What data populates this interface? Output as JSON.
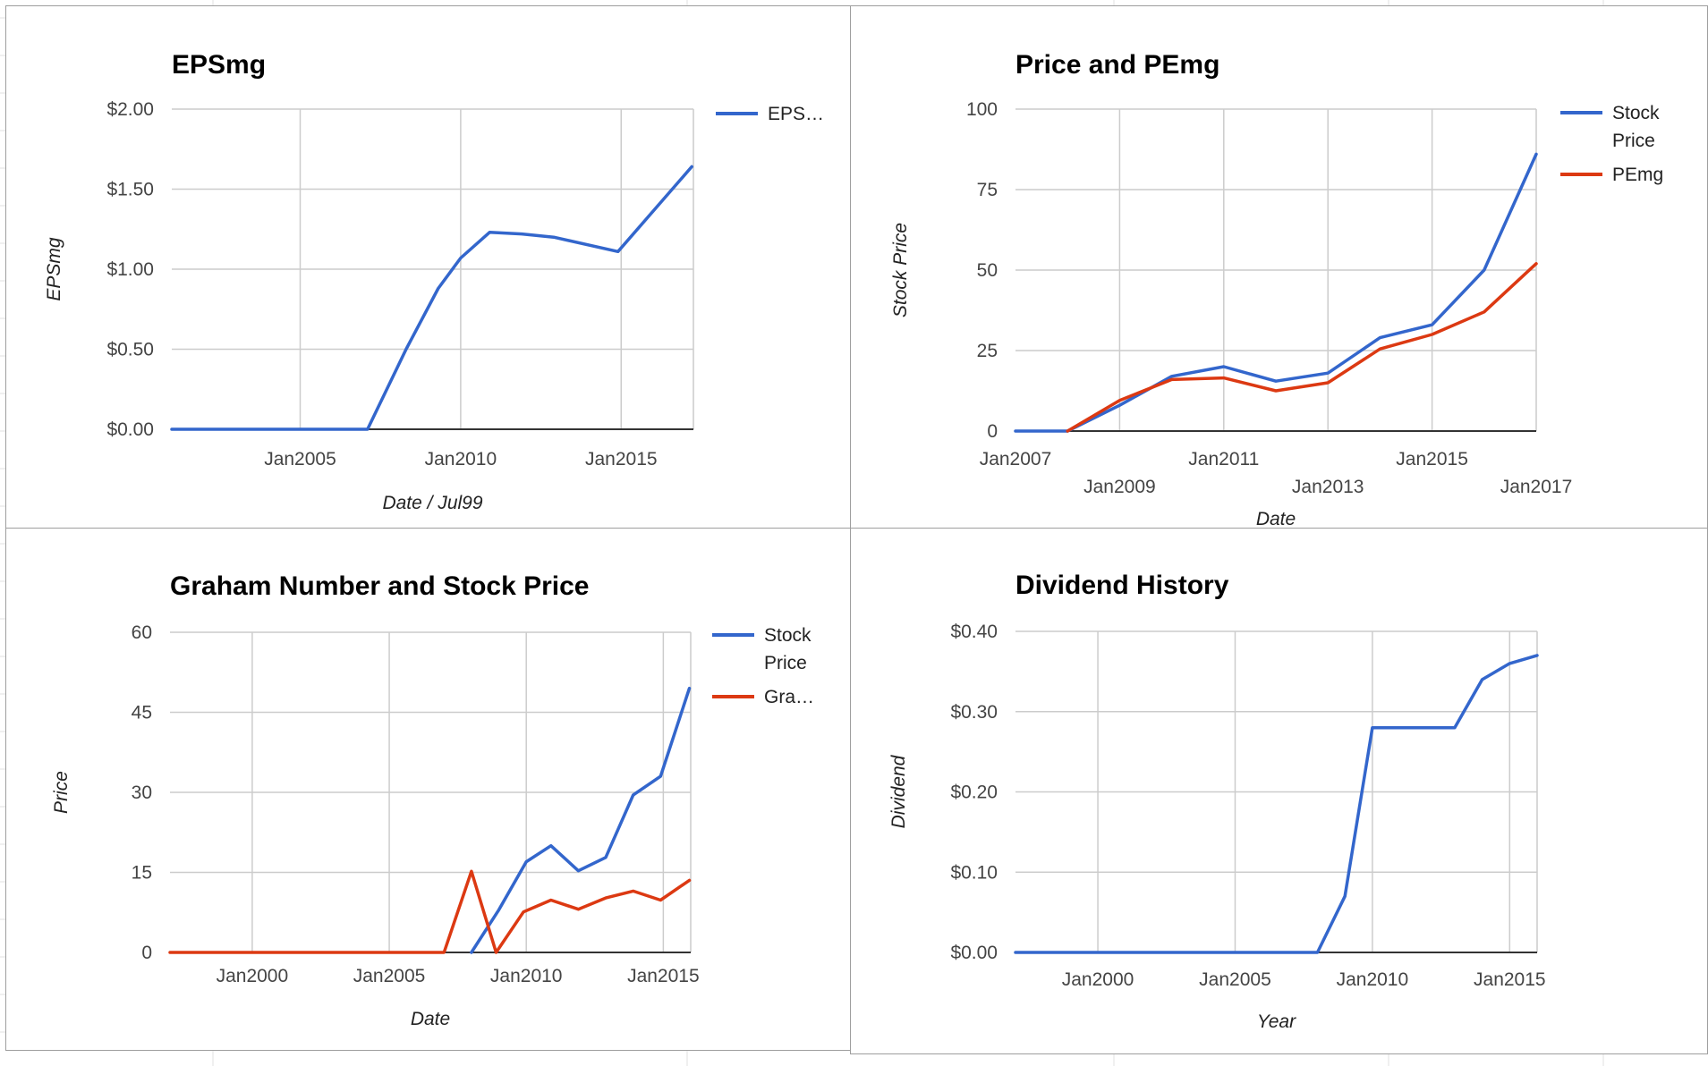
{
  "colors": {
    "blue": "#3366cc",
    "red": "#dc3912",
    "grid": "#cccccc",
    "axis": "#333333"
  },
  "chart_data": [
    {
      "id": "eps",
      "type": "line",
      "title": "EPSmg",
      "xlabel": "Date / Jul99",
      "ylabel": "EPSmg",
      "xlim": [
        2001.0,
        2017.25
      ],
      "ylim": [
        0,
        2.0
      ],
      "y_ticks": [
        "$0.00",
        "$0.50",
        "$1.00",
        "$1.50",
        "$2.00"
      ],
      "y_tick_values": [
        0,
        0.5,
        1.0,
        1.5,
        2.0
      ],
      "x_ticks": [
        "Jan2005",
        "Jan2010",
        "Jan2015"
      ],
      "x_tick_values": [
        2005,
        2010,
        2015
      ],
      "x_gridlines": [
        2005,
        2010,
        2015
      ],
      "legend_position": "right",
      "series": [
        {
          "name": "EPSmg",
          "legend_label": "EPS…",
          "color": "#3366cc",
          "x": [
            2001.0,
            2007.1,
            2008.3,
            2009.3,
            2010.0,
            2010.9,
            2011.9,
            2012.9,
            2014.9,
            2017.2
          ],
          "y": [
            0,
            0,
            0.5,
            0.88,
            1.07,
            1.23,
            1.22,
            1.2,
            1.11,
            1.64
          ]
        }
      ]
    },
    {
      "id": "pe",
      "type": "line",
      "title": "Price and PEmg",
      "xlabel": "Date",
      "ylabel": "Stock Price",
      "xlim": [
        2007.0,
        2017.0
      ],
      "ylim": [
        0,
        100
      ],
      "y_ticks": [
        "0",
        "25",
        "50",
        "75",
        "100"
      ],
      "y_tick_values": [
        0,
        25,
        50,
        75,
        100
      ],
      "x_ticks_upper": [
        "Jan2007",
        "Jan2011",
        "Jan2015"
      ],
      "x_ticks_upper_values": [
        2007,
        2011,
        2015
      ],
      "x_ticks_lower": [
        "Jan2009",
        "Jan2013",
        "Jan2017"
      ],
      "x_ticks_lower_values": [
        2009,
        2013,
        2017
      ],
      "x_gridlines": [
        2009,
        2011,
        2013,
        2015
      ],
      "legend_position": "right",
      "series": [
        {
          "name": "Stock Price",
          "legend_lines": [
            "Stock",
            "Price"
          ],
          "color": "#3366cc",
          "x": [
            2007.0,
            2008.0,
            2009.0,
            2010.0,
            2011.0,
            2012.0,
            2013.0,
            2014.0,
            2015.0,
            2016.0,
            2017.0
          ],
          "y": [
            0,
            0,
            8,
            17,
            20,
            15.5,
            18,
            29,
            33,
            50,
            86
          ]
        },
        {
          "name": "PEmg",
          "legend_lines": [
            "PEmg"
          ],
          "color": "#dc3912",
          "x": [
            2008.0,
            2009.0,
            2010.0,
            2011.0,
            2012.0,
            2013.0,
            2014.0,
            2015.0,
            2016.0,
            2017.0
          ],
          "y": [
            0,
            9.5,
            16,
            16.5,
            12.5,
            15,
            25.5,
            30,
            37,
            52
          ]
        }
      ]
    },
    {
      "id": "graham",
      "type": "line",
      "title": "Graham Number and Stock Price",
      "xlabel": "Date",
      "ylabel": "Price",
      "xlim": [
        1997.0,
        2016.0
      ],
      "ylim": [
        0,
        60
      ],
      "y_ticks": [
        "0",
        "15",
        "30",
        "45",
        "60"
      ],
      "y_tick_values": [
        0,
        15,
        30,
        45,
        60
      ],
      "x_ticks": [
        "Jan2000",
        "Jan2005",
        "Jan2010",
        "Jan2015"
      ],
      "x_tick_values": [
        2000,
        2005,
        2010,
        2015
      ],
      "x_gridlines": [
        2000,
        2005,
        2010,
        2015
      ],
      "legend_position": "right",
      "series": [
        {
          "name": "Stock Price",
          "legend_lines": [
            "Stock",
            "Price"
          ],
          "color": "#3366cc",
          "x": [
            2008.0,
            2009.0,
            2010.0,
            2010.9,
            2011.9,
            2012.9,
            2013.9,
            2014.9,
            2015.95
          ],
          "y": [
            0,
            8,
            17,
            20,
            15.3,
            17.8,
            29.5,
            33,
            49.5
          ]
        },
        {
          "name": "Graham Number",
          "legend_lines": [
            "Gra…"
          ],
          "color": "#dc3912",
          "x": [
            1997.0,
            2007.0,
            2008.0,
            2008.9,
            2009.9,
            2010.9,
            2011.9,
            2012.9,
            2013.9,
            2014.9,
            2015.95
          ],
          "y": [
            0,
            0,
            15.2,
            0,
            7.6,
            9.8,
            8.1,
            10.2,
            11.5,
            9.8,
            13.5
          ]
        }
      ]
    },
    {
      "id": "dividend",
      "type": "line",
      "title": "Dividend History",
      "xlabel": "Year",
      "ylabel": "Dividend",
      "xlim": [
        1997.0,
        2016.0
      ],
      "ylim": [
        0,
        0.4
      ],
      "y_ticks": [
        "$0.00",
        "$0.10",
        "$0.20",
        "$0.30",
        "$0.40"
      ],
      "y_tick_values": [
        0,
        0.1,
        0.2,
        0.3,
        0.4
      ],
      "x_ticks": [
        "Jan2000",
        "Jan2005",
        "Jan2010",
        "Jan2015"
      ],
      "x_tick_values": [
        2000,
        2005,
        2010,
        2015
      ],
      "x_gridlines": [
        2000,
        2005,
        2010,
        2015
      ],
      "legend_position": "none",
      "series": [
        {
          "name": "Dividend",
          "color": "#3366cc",
          "x": [
            1997.0,
            2008.0,
            2009.0,
            2010.0,
            2011.0,
            2012.0,
            2013.0,
            2014.0,
            2015.0,
            2016.0
          ],
          "y": [
            0,
            0,
            0.07,
            0.28,
            0.28,
            0.28,
            0.28,
            0.34,
            0.36,
            0.37
          ]
        }
      ]
    }
  ]
}
